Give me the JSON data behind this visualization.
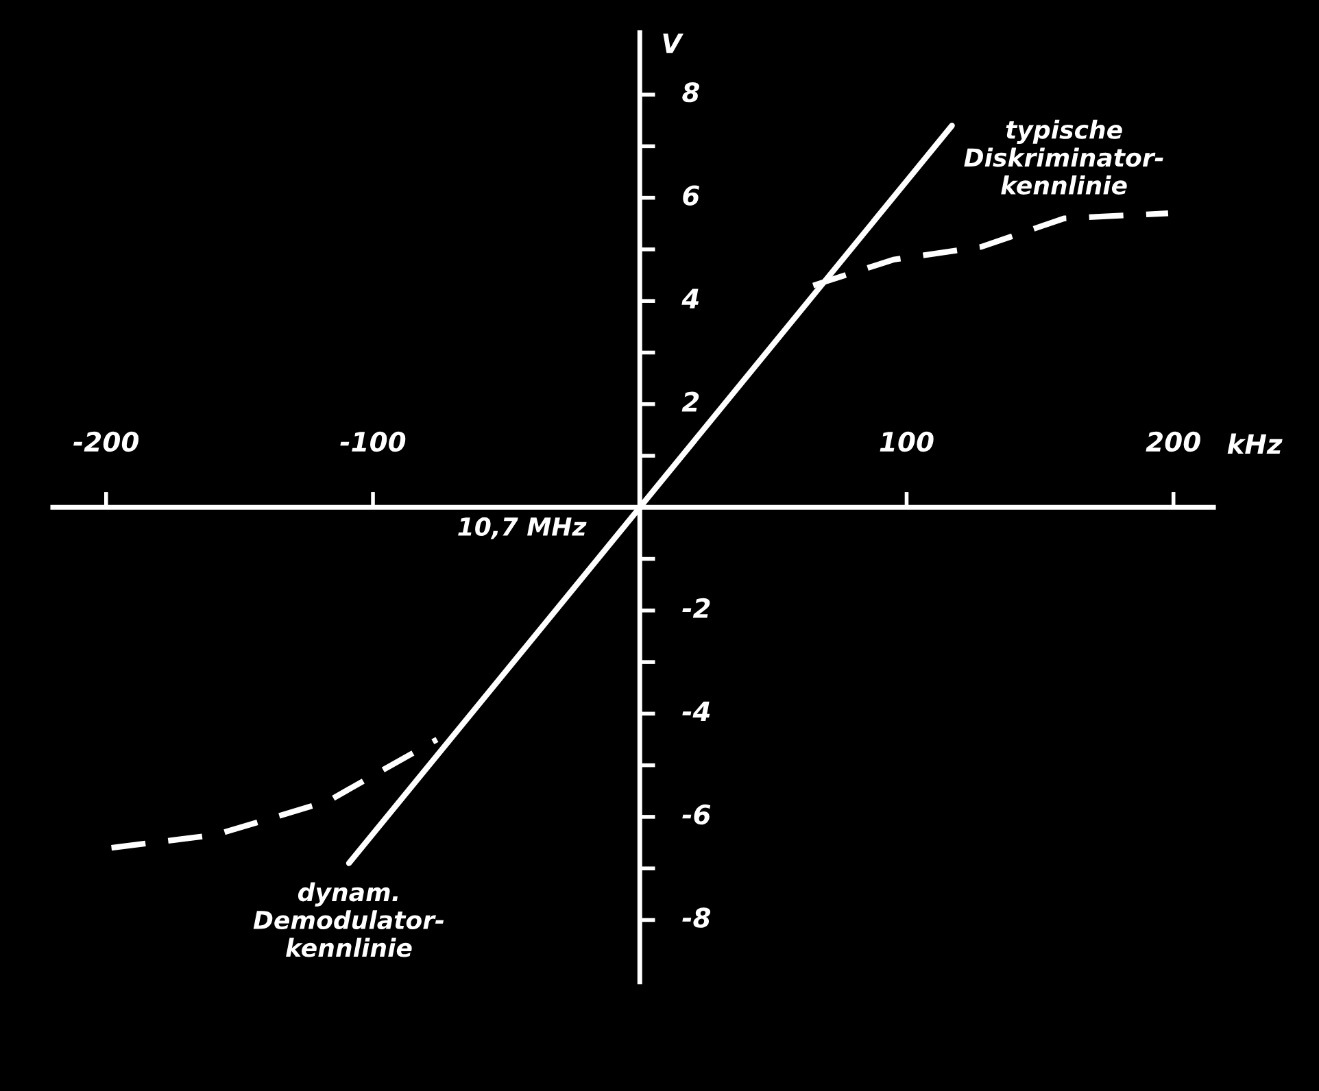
{
  "chart_data": {
    "type": "line",
    "xlabel": "kHz",
    "ylabel": "V",
    "xlim": [
      -220,
      215
    ],
    "ylim": [
      -9.2,
      9.2
    ],
    "xticks": [
      {
        "value": -200,
        "label": "-200"
      },
      {
        "value": -100,
        "label": "-100"
      },
      100,
      200
    ],
    "yticks": [
      {
        "value": -8,
        "label": "-8"
      },
      {
        "value": -7,
        "label": null
      },
      {
        "value": -6,
        "label": "-6"
      },
      {
        "value": -5,
        "label": null
      },
      {
        "value": -4,
        "label": "-4"
      },
      {
        "value": -3,
        "label": null
      },
      {
        "value": -2,
        "label": "-2"
      },
      {
        "value": -1,
        "label": null
      },
      {
        "value": 1,
        "label": null
      },
      2,
      {
        "value": 3,
        "label": null
      },
      4,
      {
        "value": 5,
        "label": null
      },
      6,
      {
        "value": 7,
        "label": null
      },
      8
    ],
    "grid": false,
    "legend": false,
    "marker": "none",
    "series": [
      {
        "color": "#ffffff",
        "line_style": "solid",
        "x": [
          -109,
          117
        ],
        "values": [
          -6.9,
          7.4
        ]
      },
      {
        "color": "#ffffff",
        "line_style": "dashed",
        "x": [
          -198,
          -159,
          -117,
          -76,
          null,
          65,
          95,
          128,
          159,
          198
        ],
        "values": [
          -6.6,
          -6.35,
          -5.7,
          -4.5,
          null,
          4.3,
          4.8,
          5.05,
          5.6,
          5.7
        ]
      }
    ],
    "annotations": [
      {
        "text": "typische\nDiskriminator-\nkennlinie",
        "x": 159,
        "y": 5.6
      },
      {
        "text": "dynam.\nDemodulator-\nkennlinie",
        "x": -109,
        "y": -6.9
      },
      {
        "text": "10,7 MHz",
        "x": 0,
        "y": 0
      }
    ]
  }
}
